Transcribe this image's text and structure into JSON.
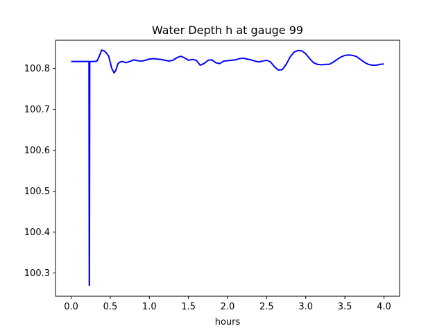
{
  "chart_data": {
    "type": "line",
    "title": "Water Depth h at gauge 99",
    "xlabel": "hours",
    "ylabel": "",
    "xlim": [
      -0.2,
      4.2
    ],
    "ylim": [
      100.243,
      100.869
    ],
    "xticks": [
      0.0,
      0.5,
      1.0,
      1.5,
      2.0,
      2.5,
      3.0,
      3.5,
      4.0
    ],
    "xtick_labels": [
      "0.0",
      "0.5",
      "1.0",
      "1.5",
      "2.0",
      "2.5",
      "3.0",
      "3.5",
      "4.0"
    ],
    "yticks": [
      100.3,
      100.4,
      100.5,
      100.6,
      100.7,
      100.8
    ],
    "ytick_labels": [
      "100.3",
      "100.4",
      "100.5",
      "100.6",
      "100.7",
      "100.8"
    ],
    "grid": false,
    "series": [
      {
        "color": "#0000ff",
        "x": [
          0.0,
          0.1,
          0.2,
          0.225,
          0.228,
          0.232,
          0.234,
          0.238,
          0.241,
          0.245,
          0.3,
          0.33,
          0.36,
          0.39,
          0.42,
          0.45,
          0.48,
          0.5,
          0.52,
          0.55,
          0.57,
          0.6,
          0.63,
          0.66,
          0.7,
          0.75,
          0.8,
          0.85,
          0.9,
          0.95,
          1.0,
          1.05,
          1.1,
          1.15,
          1.2,
          1.25,
          1.3,
          1.35,
          1.4,
          1.45,
          1.5,
          1.55,
          1.6,
          1.65,
          1.7,
          1.75,
          1.8,
          1.85,
          1.9,
          1.95,
          2.0,
          2.05,
          2.1,
          2.15,
          2.2,
          2.25,
          2.3,
          2.35,
          2.4,
          2.45,
          2.5,
          2.55,
          2.6,
          2.65,
          2.7,
          2.75,
          2.8,
          2.85,
          2.9,
          2.95,
          3.0,
          3.05,
          3.1,
          3.15,
          3.2,
          3.25,
          3.3,
          3.35,
          3.4,
          3.45,
          3.5,
          3.55,
          3.6,
          3.65,
          3.7,
          3.75,
          3.8,
          3.85,
          3.9,
          3.95,
          4.0
        ],
        "y": [
          100.817,
          100.817,
          100.817,
          100.817,
          100.817,
          100.27,
          100.27,
          100.817,
          100.817,
          100.817,
          100.817,
          100.818,
          100.83,
          100.845,
          100.843,
          100.838,
          100.83,
          100.815,
          100.8,
          100.789,
          100.795,
          100.812,
          100.816,
          100.817,
          100.814,
          100.817,
          100.821,
          100.819,
          100.818,
          100.82,
          100.823,
          100.824,
          100.823,
          100.822,
          100.82,
          100.818,
          100.82,
          100.826,
          100.83,
          100.826,
          100.82,
          100.822,
          100.82,
          100.808,
          100.812,
          100.82,
          100.821,
          100.814,
          100.812,
          100.818,
          100.819,
          100.82,
          100.821,
          100.824,
          100.825,
          100.823,
          100.821,
          100.818,
          100.816,
          100.818,
          100.82,
          100.816,
          100.804,
          100.796,
          100.797,
          100.81,
          100.828,
          100.84,
          100.844,
          100.843,
          100.836,
          100.824,
          100.814,
          100.81,
          100.809,
          100.81,
          100.81,
          100.815,
          100.822,
          100.828,
          100.832,
          100.833,
          100.832,
          100.829,
          100.822,
          100.815,
          100.81,
          100.808,
          100.808,
          100.81,
          100.811
        ]
      }
    ]
  }
}
